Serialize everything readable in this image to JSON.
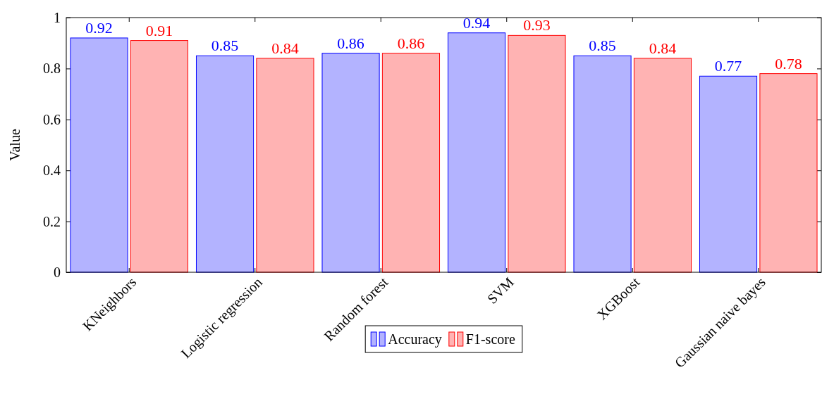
{
  "chart_data": {
    "type": "bar",
    "ylabel": "Value",
    "categories": [
      "KNeighbors",
      "Logistic regression",
      "Random forest",
      "SVM",
      "XGBoost",
      "Gaussian naive bayes"
    ],
    "series": [
      {
        "name": "Accuracy",
        "color": "#b3b3ff",
        "values": [
          0.92,
          0.85,
          0.86,
          0.94,
          0.85,
          0.77
        ]
      },
      {
        "name": "F1-score",
        "color": "#ffb3b3",
        "values": [
          0.91,
          0.84,
          0.86,
          0.93,
          0.84,
          0.78
        ]
      }
    ],
    "ylim": [
      0,
      1
    ],
    "yticks": [
      0,
      0.2,
      0.4,
      0.6,
      0.8,
      1
    ],
    "data_labels": true,
    "legend": "bottom",
    "grid": false
  }
}
